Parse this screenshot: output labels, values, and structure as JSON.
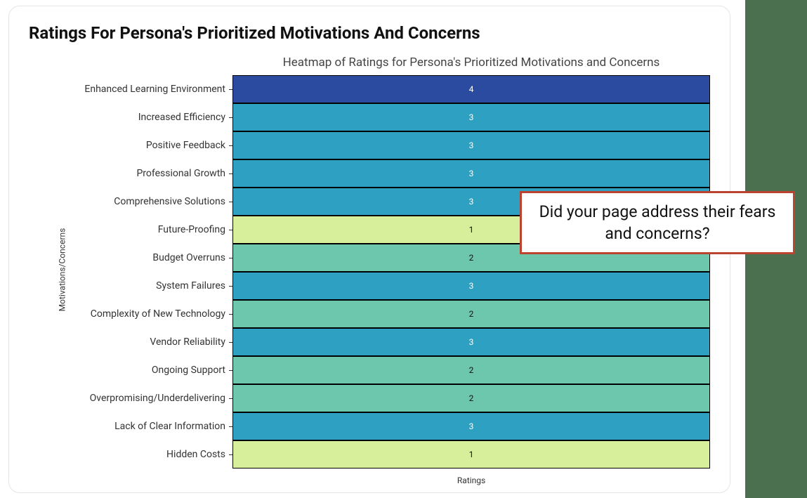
{
  "card": {
    "title": "Ratings For Persona's Prioritized Motivations And Concerns"
  },
  "chart": {
    "type": "heatmap",
    "title": "Heatmap of Ratings for Persona's Prioritized Motivations and Concerns",
    "x_axis_label": "Ratings",
    "y_axis_label": "Motivations/Concerns",
    "title_fontsize": 17,
    "label_fontsize": 12,
    "value_fontsize": 12,
    "border_color": "#000000",
    "background_color": "#ffffff",
    "color_scale": {
      "1": "#d7ee9b",
      "2": "#6cc7ad",
      "3": "#2ea0c1",
      "4": "#2a4ba0"
    },
    "text_color_scale": {
      "1": "#111111",
      "2": "#111111",
      "3": "#ffffff",
      "4": "#ffffff"
    },
    "rows": [
      {
        "label": "Enhanced Learning Environment",
        "value": 4
      },
      {
        "label": "Increased Efficiency",
        "value": 3
      },
      {
        "label": "Positive Feedback",
        "value": 3
      },
      {
        "label": "Professional Growth",
        "value": 3
      },
      {
        "label": "Comprehensive Solutions",
        "value": 3
      },
      {
        "label": "Future-Proofing",
        "value": 1
      },
      {
        "label": "Budget Overruns",
        "value": 2
      },
      {
        "label": "System Failures",
        "value": 3
      },
      {
        "label": "Complexity of New Technology",
        "value": 2
      },
      {
        "label": "Vendor Reliability",
        "value": 3
      },
      {
        "label": "Ongoing Support",
        "value": 2
      },
      {
        "label": "Overpromising/Underdelivering",
        "value": 2
      },
      {
        "label": "Lack of Clear Information",
        "value": 3
      },
      {
        "label": "Hidden Costs",
        "value": 1
      }
    ]
  },
  "callout": {
    "text": "Did your page address their fears and concerns?",
    "border_color": "#bb4430",
    "background_color": "#ffffff",
    "fontsize": 23
  },
  "decor": {
    "right_band_color": "#4a7050"
  }
}
